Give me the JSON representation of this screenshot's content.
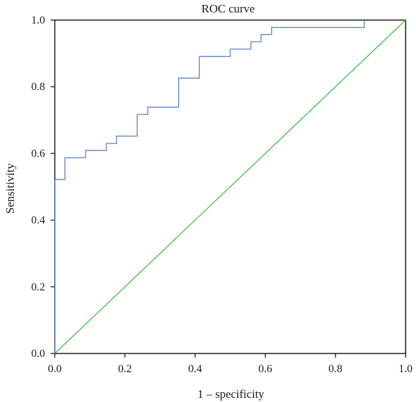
{
  "chart_data": {
    "type": "line",
    "title": "ROC curve",
    "xlabel": "1 – specificity",
    "ylabel": "Sensitivity",
    "xlim": [
      0,
      1
    ],
    "ylim": [
      0,
      1
    ],
    "xticks": [
      "0.0",
      "0.2",
      "0.4",
      "0.6",
      "0.8",
      "1.0"
    ],
    "yticks": [
      "0.0",
      "0.2",
      "0.4",
      "0.6",
      "0.8",
      "1.0"
    ],
    "grid": false,
    "legend": "none",
    "series": [
      {
        "style": "step",
        "color": "#5b7fc6",
        "x": [
          0.0,
          0.0,
          0.029,
          0.029,
          0.088,
          0.088,
          0.147,
          0.147,
          0.176,
          0.176,
          0.235,
          0.235,
          0.265,
          0.265,
          0.353,
          0.353,
          0.412,
          0.412,
          0.5,
          0.5,
          0.559,
          0.559,
          0.588,
          0.588,
          0.618,
          0.618,
          0.882,
          0.882
        ],
        "y": [
          0.0,
          0.522,
          0.522,
          0.587,
          0.587,
          0.609,
          0.609,
          0.63,
          0.63,
          0.652,
          0.652,
          0.717,
          0.717,
          0.739,
          0.739,
          0.826,
          0.826,
          0.891,
          0.891,
          0.913,
          0.913,
          0.935,
          0.935,
          0.957,
          0.957,
          0.978,
          0.978,
          1.0
        ]
      },
      {
        "style": "line",
        "color": "#3fbf3f",
        "x": [
          0,
          1
        ],
        "y": [
          0,
          1
        ]
      }
    ]
  }
}
